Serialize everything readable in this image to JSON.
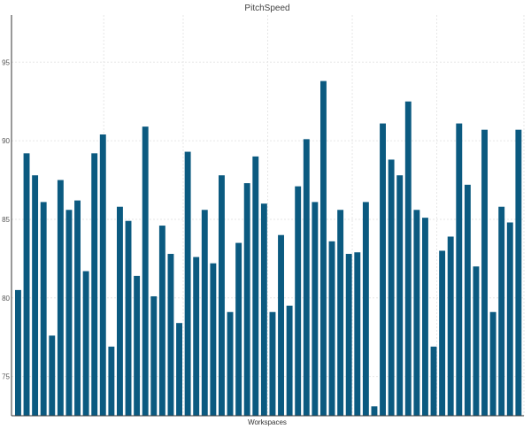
{
  "chart_data": {
    "type": "bar",
    "title": "PitchSpeed",
    "xlabel": "Workspaces",
    "ylabel": "",
    "ylim": [
      72.5,
      98
    ],
    "yticks": [
      75,
      80,
      85,
      90,
      95
    ],
    "grid": true,
    "bar_color": "#0b5a80",
    "values": [
      80.5,
      89.2,
      87.8,
      86.1,
      77.6,
      87.5,
      85.6,
      86.2,
      81.7,
      89.2,
      90.4,
      76.9,
      85.8,
      84.9,
      81.4,
      90.9,
      80.1,
      84.6,
      82.8,
      78.4,
      89.3,
      82.6,
      85.6,
      82.2,
      87.8,
      79.1,
      83.5,
      87.3,
      89.0,
      86.0,
      79.1,
      84.0,
      79.5,
      87.1,
      90.1,
      86.1,
      93.8,
      83.6,
      85.6,
      82.8,
      82.9,
      86.1,
      73.1,
      91.1,
      88.8,
      87.8,
      92.5,
      85.6,
      85.1,
      76.9,
      83.0,
      83.9,
      91.1,
      87.2,
      82.0,
      90.7,
      79.1,
      85.8,
      84.8,
      90.7
    ]
  }
}
